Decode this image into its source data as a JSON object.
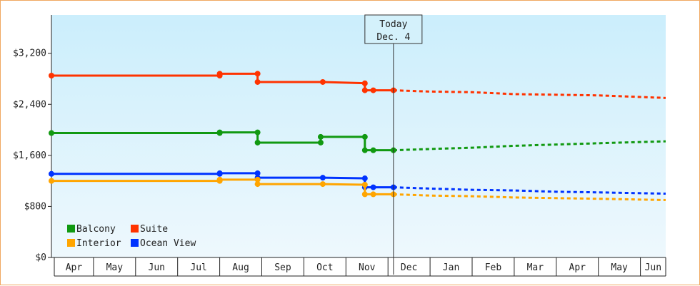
{
  "chart_data": {
    "type": "line",
    "ylim": [
      0,
      3800
    ],
    "yticks": [
      {
        "value": 0,
        "label": "$0"
      },
      {
        "value": 800,
        "label": "$800"
      },
      {
        "value": 1600,
        "label": "$1,600"
      },
      {
        "value": 2400,
        "label": "$2,400"
      },
      {
        "value": 3200,
        "label": "$3,200"
      }
    ],
    "x_months": [
      "Apr",
      "May",
      "Jun",
      "Jul",
      "Aug",
      "Sep",
      "Oct",
      "Nov",
      "Dec",
      "Jan",
      "Feb",
      "Mar",
      "Apr",
      "May",
      "Jun"
    ],
    "x_range": [
      0,
      14.6
    ],
    "today": {
      "line1": "Today",
      "line2": "Dec. 4",
      "x": 8.13
    },
    "grid": false,
    "legend_position": "bottom-left",
    "colors": {
      "Balcony": "#119911",
      "Suite": "#ff3300",
      "Interior": "#ffa500",
      "Ocean View": "#0033ff",
      "plot_top": "#cbeefc",
      "plot_bottom": "#eef8fd",
      "border": "#f0a860"
    },
    "series": [
      {
        "name": "Suite",
        "color": "#ff3300",
        "history": [
          [
            0,
            2850
          ],
          [
            4.0,
            2850
          ],
          [
            4.0,
            2880
          ],
          [
            4.9,
            2880
          ],
          [
            4.9,
            2750
          ],
          [
            6.45,
            2750
          ],
          [
            7.45,
            2730
          ],
          [
            7.45,
            2620
          ],
          [
            7.65,
            2620
          ],
          [
            8.13,
            2620
          ]
        ],
        "markers": [
          [
            0,
            2850
          ],
          [
            4.0,
            2850
          ],
          [
            4.0,
            2880
          ],
          [
            4.9,
            2880
          ],
          [
            4.9,
            2750
          ],
          [
            6.45,
            2750
          ],
          [
            7.45,
            2730
          ],
          [
            7.45,
            2620
          ],
          [
            7.65,
            2620
          ]
        ],
        "forecast": [
          [
            8.13,
            2620
          ],
          [
            9.0,
            2600
          ],
          [
            10.0,
            2590
          ],
          [
            11.0,
            2560
          ],
          [
            12.0,
            2550
          ],
          [
            13.0,
            2540
          ],
          [
            14.6,
            2500
          ]
        ]
      },
      {
        "name": "Balcony",
        "color": "#119911",
        "history": [
          [
            0,
            1950
          ],
          [
            4.0,
            1950
          ],
          [
            4.0,
            1960
          ],
          [
            4.9,
            1960
          ],
          [
            4.9,
            1800
          ],
          [
            6.4,
            1800
          ],
          [
            6.4,
            1890
          ],
          [
            7.45,
            1890
          ],
          [
            7.45,
            1680
          ],
          [
            7.65,
            1680
          ],
          [
            8.13,
            1680
          ]
        ],
        "markers": [
          [
            0,
            1950
          ],
          [
            4.0,
            1950
          ],
          [
            4.0,
            1960
          ],
          [
            4.9,
            1960
          ],
          [
            4.9,
            1800
          ],
          [
            6.4,
            1800
          ],
          [
            6.4,
            1890
          ],
          [
            7.45,
            1890
          ],
          [
            7.45,
            1680
          ],
          [
            7.65,
            1680
          ]
        ],
        "forecast": [
          [
            8.13,
            1680
          ],
          [
            9.0,
            1700
          ],
          [
            10.0,
            1720
          ],
          [
            11.0,
            1750
          ],
          [
            12.0,
            1770
          ],
          [
            13.0,
            1790
          ],
          [
            14.6,
            1820
          ]
        ]
      },
      {
        "name": "Ocean View",
        "color": "#0033ff",
        "history": [
          [
            0,
            1310
          ],
          [
            4.0,
            1310
          ],
          [
            4.0,
            1320
          ],
          [
            4.9,
            1320
          ],
          [
            4.9,
            1250
          ],
          [
            6.45,
            1250
          ],
          [
            7.45,
            1240
          ],
          [
            7.45,
            1100
          ],
          [
            7.65,
            1100
          ],
          [
            8.13,
            1100
          ]
        ],
        "markers": [
          [
            0,
            1310
          ],
          [
            4.0,
            1310
          ],
          [
            4.0,
            1320
          ],
          [
            4.9,
            1320
          ],
          [
            4.9,
            1250
          ],
          [
            6.45,
            1250
          ],
          [
            7.45,
            1240
          ],
          [
            7.45,
            1100
          ],
          [
            7.65,
            1100
          ]
        ],
        "forecast": [
          [
            8.13,
            1100
          ],
          [
            9.0,
            1080
          ],
          [
            10.0,
            1060
          ],
          [
            11.0,
            1050
          ],
          [
            12.0,
            1030
          ],
          [
            13.0,
            1020
          ],
          [
            14.6,
            1000
          ]
        ]
      },
      {
        "name": "Interior",
        "color": "#ffa500",
        "history": [
          [
            0,
            1200
          ],
          [
            4.0,
            1200
          ],
          [
            4.0,
            1220
          ],
          [
            4.9,
            1220
          ],
          [
            4.9,
            1150
          ],
          [
            6.45,
            1150
          ],
          [
            7.45,
            1140
          ],
          [
            7.45,
            990
          ],
          [
            7.65,
            990
          ],
          [
            8.13,
            990
          ]
        ],
        "markers": [
          [
            0,
            1200
          ],
          [
            4.0,
            1200
          ],
          [
            4.0,
            1220
          ],
          [
            4.9,
            1220
          ],
          [
            4.9,
            1150
          ],
          [
            6.45,
            1150
          ],
          [
            7.45,
            1140
          ],
          [
            7.45,
            990
          ],
          [
            7.65,
            990
          ]
        ],
        "forecast": [
          [
            8.13,
            990
          ],
          [
            9.0,
            970
          ],
          [
            10.0,
            960
          ],
          [
            11.0,
            940
          ],
          [
            12.0,
            930
          ],
          [
            13.0,
            920
          ],
          [
            14.6,
            900
          ]
        ]
      }
    ],
    "legend": [
      "Balcony",
      "Suite",
      "Interior",
      "Ocean View"
    ]
  }
}
